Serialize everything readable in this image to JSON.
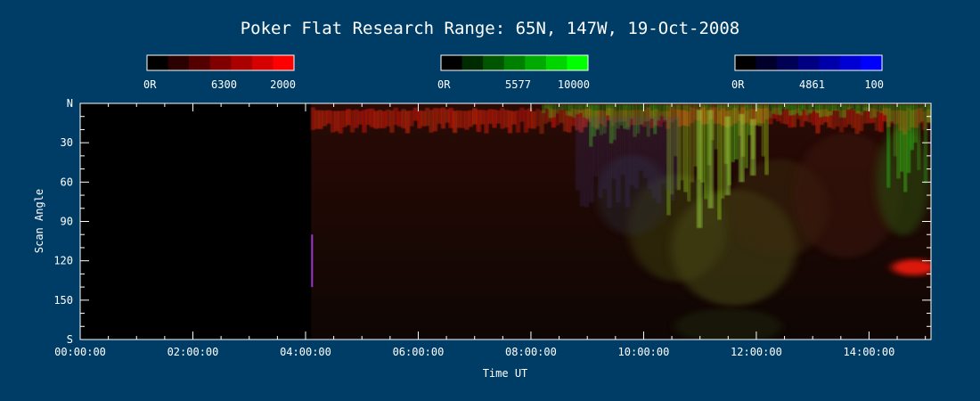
{
  "chart_data": {
    "type": "heatmap",
    "title": "Poker Flat Research Range: 65N, 147W, 19-Oct-2008",
    "xlabel": "Time UT",
    "ylabel": "Scan Angle",
    "x_ticks": [
      "00:00:00",
      "02:00:00",
      "04:00:00",
      "06:00:00",
      "08:00:00",
      "10:00:00",
      "12:00:00",
      "14:00:00"
    ],
    "x_tick_hours": [
      0,
      2,
      4,
      6,
      8,
      10,
      12,
      14
    ],
    "xlim_hours": [
      0,
      15.1
    ],
    "y_ticks": [
      "N",
      "30",
      "60",
      "90",
      "120",
      "150",
      "S"
    ],
    "y_tick_values": [
      0,
      30,
      60,
      90,
      120,
      150,
      180
    ],
    "ylim": [
      0,
      180
    ],
    "data_start_hours": 4.1,
    "colorbars": [
      {
        "channel": "red",
        "wavelength": "6300",
        "min_label": "0R",
        "max_label": "2000",
        "color": "#ff0000"
      },
      {
        "channel": "green",
        "wavelength": "5577",
        "min_label": "0R",
        "max_label": "10000",
        "color": "#00ff00"
      },
      {
        "channel": "blue",
        "wavelength": "4861",
        "min_label": "0R",
        "max_label": "100",
        "color": "#0000ff"
      }
    ]
  }
}
